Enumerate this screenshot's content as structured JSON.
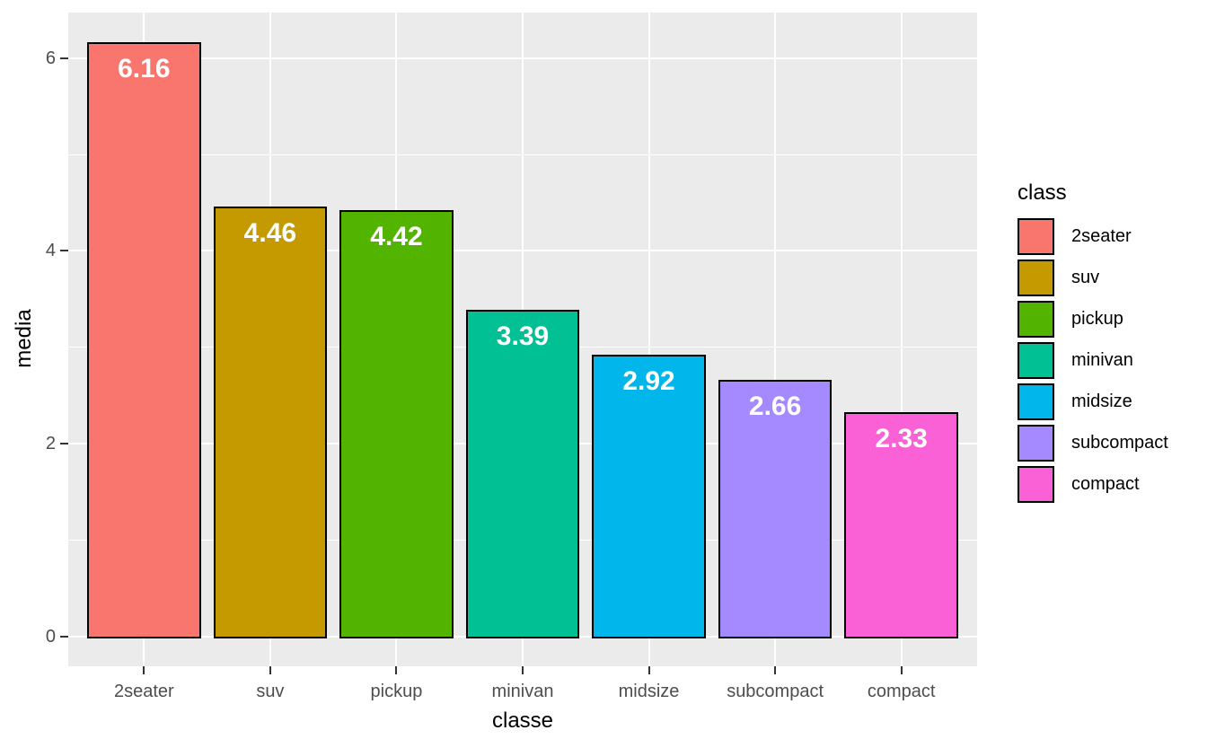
{
  "figure": {
    "background": "#FFFFFF"
  },
  "chart_data": {
    "type": "bar",
    "title": "",
    "xlabel": "classe",
    "ylabel": "media",
    "categories": [
      "2seater",
      "suv",
      "pickup",
      "minivan",
      "midsize",
      "subcompact",
      "compact"
    ],
    "values": [
      6.16,
      4.46,
      4.42,
      3.39,
      2.92,
      2.66,
      2.33
    ],
    "value_labels": [
      "6.16",
      "4.46",
      "4.42",
      "3.39",
      "2.92",
      "2.66",
      "2.33"
    ],
    "bar_colors": [
      "#F8766D",
      "#C49A00",
      "#53B400",
      "#00C094",
      "#00B6EB",
      "#A58AFF",
      "#FB61D7"
    ],
    "bar_border_color": "#000000",
    "value_label_color": "#FFFFFF",
    "ylim": [
      0,
      6.47
    ],
    "yticks": [
      0,
      2,
      4,
      6
    ],
    "ytick_labels": [
      "0",
      "2",
      "4",
      "6"
    ],
    "minor_gridlines_at": [
      1,
      3,
      5
    ],
    "grid": "on",
    "panel_background": "#EBEBEB",
    "gridline_color": "#FFFFFF",
    "axis_text_color": "#4D4D4D",
    "axis_title_color": "#000000",
    "legend": {
      "title": "class",
      "position": "right",
      "entries": [
        {
          "label": "2seater",
          "color": "#F8766D"
        },
        {
          "label": "suv",
          "color": "#C49A00"
        },
        {
          "label": "pickup",
          "color": "#53B400"
        },
        {
          "label": "minivan",
          "color": "#00C094"
        },
        {
          "label": "midsize",
          "color": "#00B6EB"
        },
        {
          "label": "subcompact",
          "color": "#A58AFF"
        },
        {
          "label": "compact",
          "color": "#FB61D7"
        }
      ]
    }
  }
}
